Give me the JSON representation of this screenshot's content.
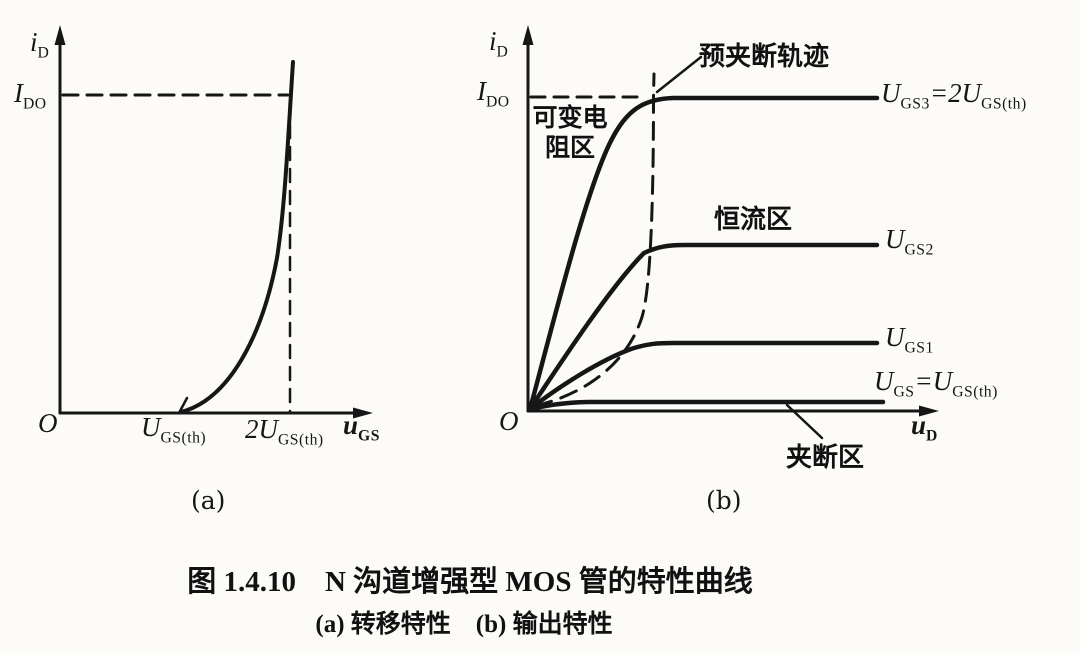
{
  "colors": {
    "ink": "#161616",
    "paper": "#fcfbf8"
  },
  "caption": {
    "title": "图 1.4.10　N 沟道增强型 MOS 管的特性曲线",
    "subtitle": "(a) 转移特性　(b) 输出特性"
  },
  "plot_a": {
    "sublabel": "(a)",
    "title": "转移特性",
    "y_axis_label": "i_{D}",
    "x_axis_label": "u_{GS}",
    "origin_label": "O",
    "y_tick_label": "I_{DO}",
    "x_tick_labels": [
      "U_{GS(th)}",
      "2U_{GS(th)}"
    ]
  },
  "plot_b": {
    "sublabel": "(b)",
    "title": "输出特性",
    "y_axis_label": "i_{D}",
    "x_axis_label": "u_{D}",
    "origin_label": "O",
    "y_tick_label": "I_{DO}",
    "region_labels": {
      "variable_resistance": "可变电\n阻区",
      "constant_current": "恒流区",
      "pinch_off": "夹断区",
      "pre_pinch_off_locus": "预夹断轨迹"
    },
    "curve_labels": [
      "U_{GS3}=2U_{GS(th)}",
      "U_{GS2}",
      "U_{GS1}",
      "U_{GS}=U_{GS(th)}"
    ]
  },
  "chart_data": [
    {
      "type": "line",
      "panel": "(a)",
      "title": "转移特性",
      "xlabel": "u_GS",
      "ylabel": "i_D",
      "x_tick_labels": [
        "O",
        "U_GS(th)",
        "2U_GS(th)"
      ],
      "y_tick_labels": [
        "I_DO"
      ],
      "axis_ranges": {
        "x": [
          "0",
          "beyond 2U_GS(th)"
        ],
        "y": [
          "0",
          "above I_DO"
        ]
      },
      "grid": false,
      "series": [
        {
          "name": "i_D(u_GS)",
          "x_unit": "U_GS(th)",
          "y_unit": "I_DO",
          "points": [
            [
              1.0,
              0.0
            ],
            [
              1.2,
              0.05
            ],
            [
              1.4,
              0.15
            ],
            [
              1.6,
              0.34
            ],
            [
              1.8,
              0.62
            ],
            [
              2.0,
              1.0
            ],
            [
              2.03,
              1.1
            ]
          ]
        }
      ],
      "annotations": [
        "curve turns on at u_GS = U_GS(th)",
        "dashed guide line at i_D = I_DO",
        "dashed guide line at u_GS = 2U_GS(th)"
      ]
    },
    {
      "type": "line",
      "panel": "(b)",
      "title": "输出特性",
      "xlabel": "u_D",
      "ylabel": "i_D",
      "y_tick_labels": [
        "I_DO"
      ],
      "grid": false,
      "series": [
        {
          "name": "U_GS3=2U_GS(th)",
          "saturation_level_in_IDO": 1.0
        },
        {
          "name": "U_GS2",
          "saturation_level_in_IDO": 0.53
        },
        {
          "name": "U_GS1",
          "saturation_level_in_IDO": 0.22
        },
        {
          "name": "U_GS=U_GS(th)",
          "saturation_level_in_IDO": 0.03
        }
      ],
      "regions": [
        "可变电阻区",
        "恒流区",
        "夹断区"
      ],
      "locus": "预夹断轨迹 (dashed parabola through curve knees)",
      "annotations": [
        "dashed guide line at i_D = I_DO up to the locus"
      ]
    }
  ]
}
